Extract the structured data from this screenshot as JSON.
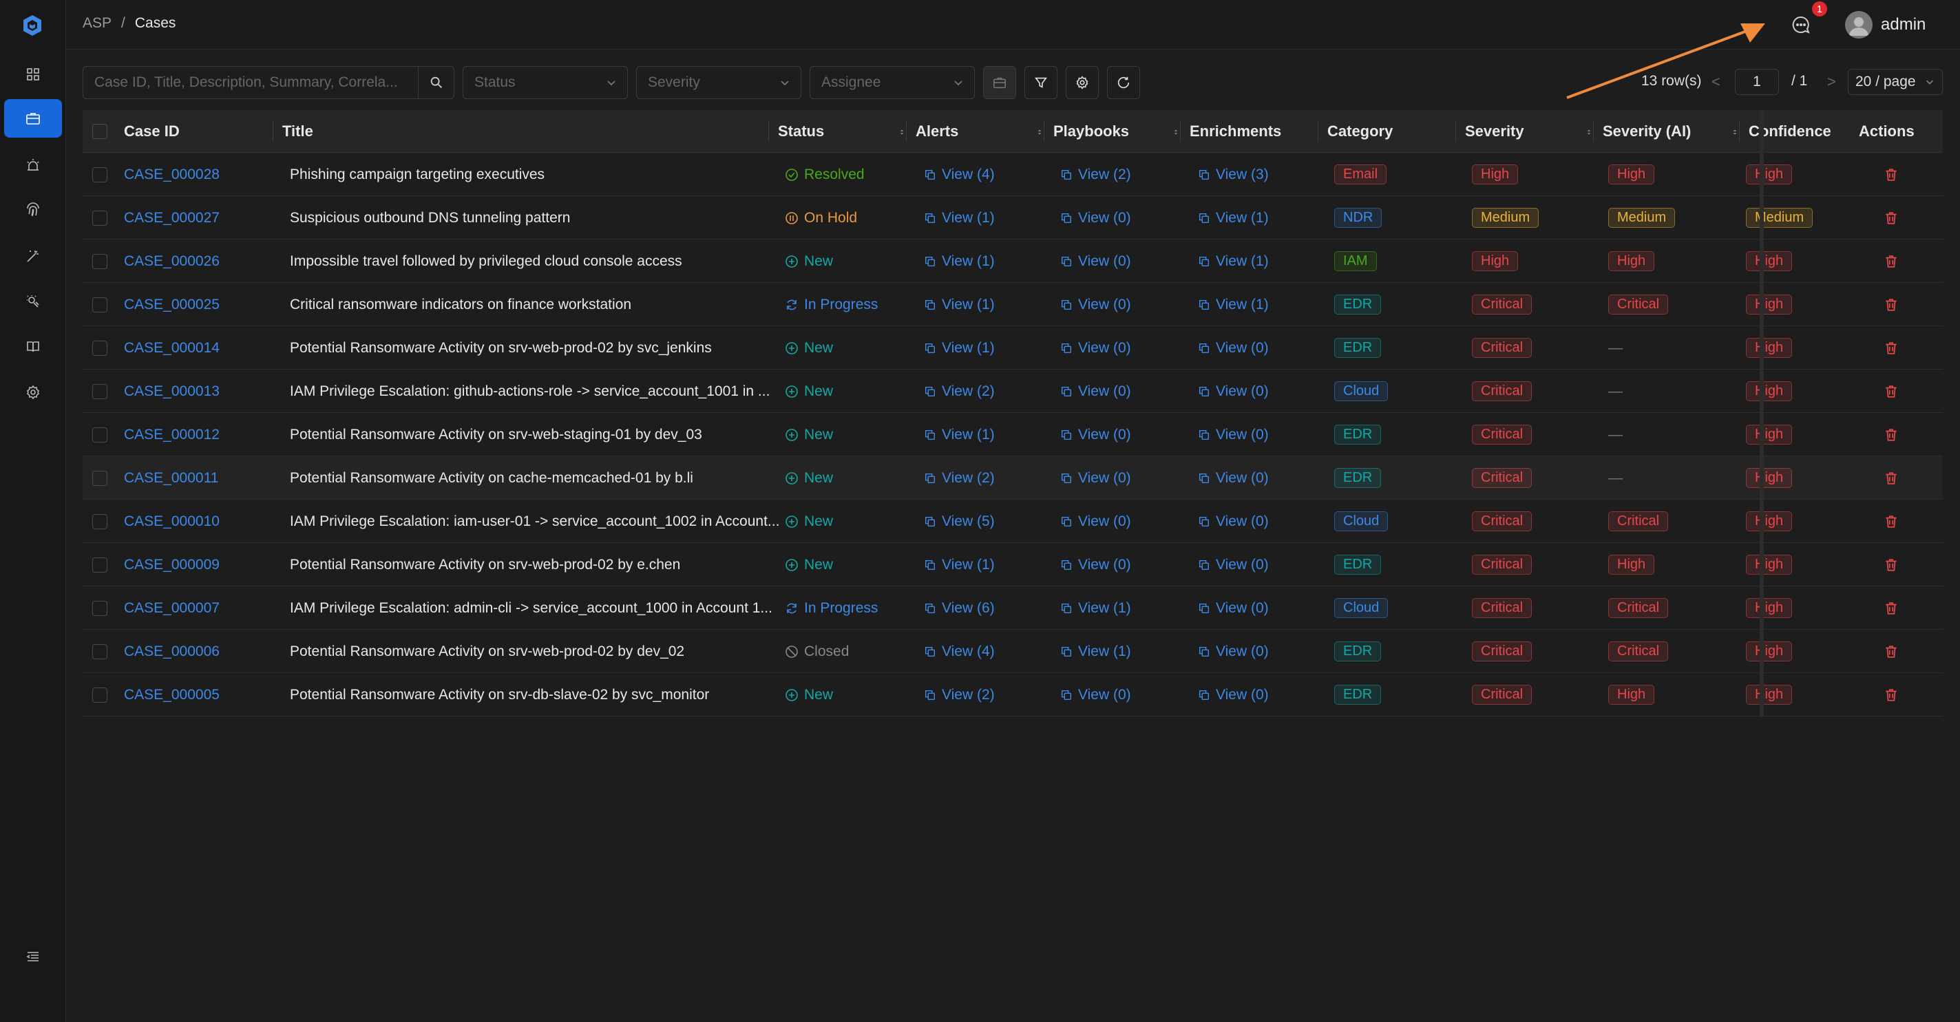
{
  "colors": {
    "accent": "#1668dc",
    "link": "#3c89e8",
    "arrow": "#f08a3c",
    "tag_red": "#e84749",
    "tag_orange": "#e8b339",
    "tag_blue": "#3c89e8",
    "tag_green": "#49aa19",
    "tag_cyan": "#13a8a8",
    "status_new": "#13a8a8",
    "status_resolved": "#49aa19",
    "status_hold": "#e89a3c",
    "status_progress": "#3c89e8",
    "status_closed": "#888888"
  },
  "sidebar": {
    "items": [
      {
        "icon": "dashboard-icon"
      },
      {
        "icon": "cases-icon",
        "active": true
      },
      {
        "icon": "alert-siren-icon"
      },
      {
        "icon": "fingerprint-icon"
      },
      {
        "icon": "magic-wand-icon"
      },
      {
        "icon": "knowledge-icon"
      },
      {
        "icon": "book-icon"
      },
      {
        "icon": "settings-icon"
      }
    ],
    "collapse_icon": "collapse-menu-icon"
  },
  "header": {
    "breadcrumb": [
      "ASP",
      "/",
      "Cases"
    ],
    "notification_count": "1",
    "user": "admin"
  },
  "toolbar": {
    "search_placeholder": "Case ID, Title, Description, Summary, Correla...",
    "status_placeholder": "Status",
    "severity_placeholder": "Severity",
    "assignee_placeholder": "Assignee"
  },
  "pagination": {
    "rows": "13 row(s)",
    "page": "1",
    "total": "/ 1",
    "page_size": "20 / page",
    "prev": "<",
    "next": ">"
  },
  "table": {
    "columns": [
      "Case ID",
      "Title",
      "Status",
      "Alerts",
      "Playbooks",
      "Enrichments",
      "Category",
      "Severity",
      "Severity (AI)",
      "Confidence",
      "Actions"
    ],
    "rows": [
      {
        "id": "CASE_000028",
        "title": "Phishing campaign targeting executives",
        "status": "Resolved",
        "alerts": "View (4)",
        "playbooks": "View (2)",
        "enrichments": "View (3)",
        "category": "Email",
        "severity": "High",
        "severity_ai": "High",
        "confidence": "High"
      },
      {
        "id": "CASE_000027",
        "title": "Suspicious outbound DNS tunneling pattern",
        "status": "On Hold",
        "alerts": "View (1)",
        "playbooks": "View (0)",
        "enrichments": "View (1)",
        "category": "NDR",
        "severity": "Medium",
        "severity_ai": "Medium",
        "confidence": "Medium"
      },
      {
        "id": "CASE_000026",
        "title": "Impossible travel followed by privileged cloud console access",
        "status": "New",
        "alerts": "View (1)",
        "playbooks": "View (0)",
        "enrichments": "View (1)",
        "category": "IAM",
        "severity": "High",
        "severity_ai": "High",
        "confidence": "High"
      },
      {
        "id": "CASE_000025",
        "title": "Critical ransomware indicators on finance workstation",
        "status": "In Progress",
        "alerts": "View (1)",
        "playbooks": "View (0)",
        "enrichments": "View (1)",
        "category": "EDR",
        "severity": "Critical",
        "severity_ai": "Critical",
        "confidence": "High"
      },
      {
        "id": "CASE_000014",
        "title": "Potential Ransomware Activity on srv-web-prod-02 by svc_jenkins",
        "status": "New",
        "alerts": "View (1)",
        "playbooks": "View (0)",
        "enrichments": "View (0)",
        "category": "EDR",
        "severity": "Critical",
        "severity_ai": "—",
        "confidence": "High"
      },
      {
        "id": "CASE_000013",
        "title": "IAM Privilege Escalation: github-actions-role -> service_account_1001 in ...",
        "status": "New",
        "alerts": "View (2)",
        "playbooks": "View (0)",
        "enrichments": "View (0)",
        "category": "Cloud",
        "severity": "Critical",
        "severity_ai": "—",
        "confidence": "High"
      },
      {
        "id": "CASE_000012",
        "title": "Potential Ransomware Activity on srv-web-staging-01 by dev_03",
        "status": "New",
        "alerts": "View (1)",
        "playbooks": "View (0)",
        "enrichments": "View (0)",
        "category": "EDR",
        "severity": "Critical",
        "severity_ai": "—",
        "confidence": "High"
      },
      {
        "id": "CASE_000011",
        "title": "Potential Ransomware Activity on cache-memcached-01 by b.li",
        "status": "New",
        "alerts": "View (2)",
        "playbooks": "View (0)",
        "enrichments": "View (0)",
        "category": "EDR",
        "severity": "Critical",
        "severity_ai": "—",
        "confidence": "High"
      },
      {
        "id": "CASE_000010",
        "title": "IAM Privilege Escalation: iam-user-01 -> service_account_1002 in Account...",
        "status": "New",
        "alerts": "View (5)",
        "playbooks": "View (0)",
        "enrichments": "View (0)",
        "category": "Cloud",
        "severity": "Critical",
        "severity_ai": "Critical",
        "confidence": "High"
      },
      {
        "id": "CASE_000009",
        "title": "Potential Ransomware Activity on srv-web-prod-02 by e.chen",
        "status": "New",
        "alerts": "View (1)",
        "playbooks": "View (0)",
        "enrichments": "View (0)",
        "category": "EDR",
        "severity": "Critical",
        "severity_ai": "High",
        "confidence": "High"
      },
      {
        "id": "CASE_000007",
        "title": "IAM Privilege Escalation: admin-cli -> service_account_1000 in Account 1...",
        "status": "In Progress",
        "alerts": "View (6)",
        "playbooks": "View (1)",
        "enrichments": "View (0)",
        "category": "Cloud",
        "severity": "Critical",
        "severity_ai": "Critical",
        "confidence": "High"
      },
      {
        "id": "CASE_000006",
        "title": "Potential Ransomware Activity on srv-web-prod-02 by dev_02",
        "status": "Closed",
        "alerts": "View (4)",
        "playbooks": "View (1)",
        "enrichments": "View (0)",
        "category": "EDR",
        "severity": "Critical",
        "severity_ai": "Critical",
        "confidence": "High"
      },
      {
        "id": "CASE_000005",
        "title": "Potential Ransomware Activity on srv-db-slave-02 by svc_monitor",
        "status": "New",
        "alerts": "View (2)",
        "playbooks": "View (0)",
        "enrichments": "View (0)",
        "category": "EDR",
        "severity": "Critical",
        "severity_ai": "High",
        "confidence": "High"
      }
    ]
  }
}
